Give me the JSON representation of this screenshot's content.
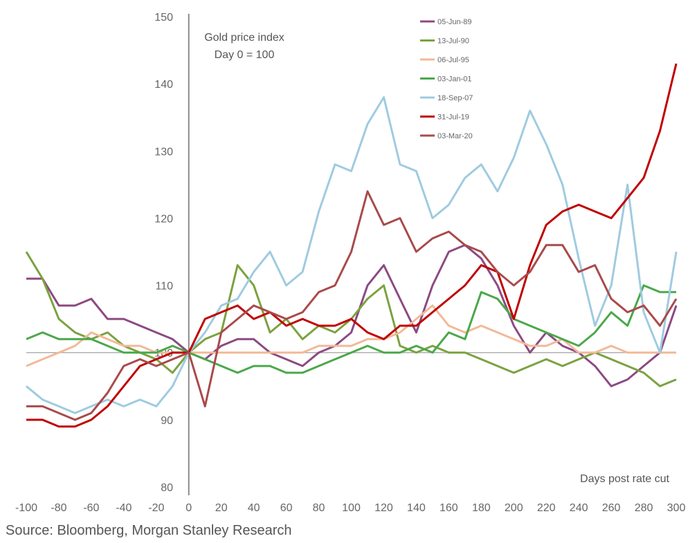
{
  "chart_data": {
    "type": "line",
    "title": "Gold price index",
    "subtitle": "Day 0 = 100",
    "xlabel": "Days post rate cut",
    "ylabel": "",
    "xlim": [
      -100,
      300
    ],
    "ylim": [
      80,
      150
    ],
    "xticks": [
      "-100",
      "-80",
      "-60",
      "-40",
      "-20",
      "0",
      "20",
      "40",
      "60",
      "80",
      "100",
      "120",
      "140",
      "160",
      "180",
      "200",
      "220",
      "240",
      "260",
      "280",
      "300"
    ],
    "yticks": [
      "80",
      "90",
      "100",
      "110",
      "120",
      "130",
      "140",
      "150"
    ],
    "legend_position": "top-center",
    "series": [
      {
        "name": "05-Jun-89",
        "color": "#8c4a82",
        "x": [
          -100,
          -90,
          -80,
          -70,
          -60,
          -50,
          -40,
          -30,
          -20,
          -10,
          0,
          10,
          20,
          30,
          40,
          50,
          60,
          70,
          80,
          90,
          100,
          110,
          120,
          130,
          140,
          150,
          160,
          170,
          180,
          190,
          200,
          210,
          220,
          230,
          240,
          250,
          260,
          270,
          280,
          290,
          300
        ],
        "y": [
          111,
          111,
          107,
          107,
          108,
          105,
          105,
          104,
          103,
          102,
          100,
          99,
          101,
          102,
          102,
          100,
          99,
          98,
          100,
          101,
          103,
          110,
          113,
          108,
          103,
          110,
          115,
          116,
          114,
          110,
          104,
          100,
          103,
          101,
          100,
          98,
          95,
          96,
          98,
          100,
          107
        ]
      },
      {
        "name": "13-Jul-90",
        "color": "#7ba23f",
        "x": [
          -100,
          -90,
          -80,
          -70,
          -60,
          -50,
          -40,
          -30,
          -20,
          -10,
          0,
          10,
          20,
          30,
          40,
          50,
          60,
          70,
          80,
          90,
          100,
          110,
          120,
          130,
          140,
          150,
          160,
          170,
          180,
          190,
          200,
          210,
          220,
          230,
          240,
          250,
          260,
          270,
          280,
          290,
          300
        ],
        "y": [
          115,
          111,
          105,
          103,
          102,
          103,
          101,
          100,
          99,
          97,
          100,
          102,
          103,
          113,
          110,
          103,
          105,
          102,
          104,
          103,
          105,
          108,
          110,
          101,
          100,
          101,
          100,
          100,
          99,
          98,
          97,
          98,
          99,
          98,
          99,
          100,
          99,
          98,
          97,
          95,
          96
        ]
      },
      {
        "name": "06-Jul-95",
        "color": "#f2b998",
        "x": [
          -100,
          -90,
          -80,
          -70,
          -60,
          -50,
          -40,
          -30,
          -20,
          -10,
          0,
          10,
          20,
          30,
          40,
          50,
          60,
          70,
          80,
          90,
          100,
          110,
          120,
          130,
          140,
          150,
          160,
          170,
          180,
          190,
          200,
          210,
          220,
          230,
          240,
          250,
          260,
          270,
          280,
          290,
          300
        ],
        "y": [
          98,
          99,
          100,
          101,
          103,
          102,
          101,
          101,
          100,
          100,
          100,
          100,
          100,
          100,
          100,
          100,
          100,
          100,
          101,
          101,
          101,
          102,
          102,
          103,
          105,
          107,
          104,
          103,
          104,
          103,
          102,
          101,
          101,
          102,
          100,
          100,
          101,
          100,
          100,
          100,
          100
        ]
      },
      {
        "name": "03-Jan-01",
        "color": "#4aa84a",
        "x": [
          -100,
          -90,
          -80,
          -70,
          -60,
          -50,
          -40,
          -30,
          -20,
          -10,
          0,
          10,
          20,
          30,
          40,
          50,
          60,
          70,
          80,
          90,
          100,
          110,
          120,
          130,
          140,
          150,
          160,
          170,
          180,
          190,
          200,
          210,
          220,
          230,
          240,
          250,
          260,
          270,
          280,
          290,
          300
        ],
        "y": [
          102,
          103,
          102,
          102,
          102,
          101,
          100,
          100,
          100,
          101,
          100,
          99,
          98,
          97,
          98,
          98,
          97,
          97,
          98,
          99,
          100,
          101,
          100,
          100,
          101,
          100,
          103,
          102,
          109,
          108,
          105,
          104,
          103,
          102,
          101,
          103,
          106,
          104,
          110,
          109,
          109
        ]
      },
      {
        "name": "18-Sep-07",
        "color": "#9fcbe0",
        "x": [
          -100,
          -90,
          -80,
          -70,
          -60,
          -50,
          -40,
          -30,
          -20,
          -10,
          0,
          10,
          20,
          30,
          40,
          50,
          60,
          70,
          80,
          90,
          100,
          110,
          120,
          130,
          140,
          150,
          160,
          170,
          180,
          190,
          200,
          210,
          220,
          230,
          240,
          250,
          260,
          270,
          280,
          290,
          300
        ],
        "y": [
          95,
          93,
          92,
          91,
          92,
          93,
          92,
          93,
          92,
          95,
          100,
          103,
          107,
          108,
          112,
          115,
          110,
          112,
          121,
          128,
          127,
          134,
          138,
          128,
          127,
          120,
          122,
          126,
          128,
          124,
          129,
          136,
          131,
          125,
          114,
          104,
          110,
          125,
          106,
          100,
          115
        ]
      },
      {
        "name": "31-Jul-19",
        "color": "#c00000",
        "x": [
          -100,
          -90,
          -80,
          -70,
          -60,
          -50,
          -40,
          -30,
          -20,
          -10,
          0,
          10,
          20,
          30,
          40,
          50,
          60,
          70,
          80,
          90,
          100,
          110,
          120,
          130,
          140,
          150,
          160,
          170,
          180,
          190,
          200,
          210,
          220,
          230,
          240,
          250,
          260,
          270,
          280,
          290,
          300
        ],
        "y": [
          90,
          90,
          89,
          89,
          90,
          92,
          95,
          98,
          99,
          100,
          100,
          105,
          106,
          107,
          105,
          106,
          104,
          105,
          104,
          104,
          105,
          103,
          102,
          104,
          104,
          106,
          108,
          110,
          113,
          112,
          105,
          113,
          119,
          121,
          122,
          121,
          120,
          123,
          126,
          133,
          143
        ]
      },
      {
        "name": "03-Mar-20",
        "color": "#a94a4a",
        "x": [
          -100,
          -90,
          -80,
          -70,
          -60,
          -50,
          -40,
          -30,
          -20,
          -10,
          0,
          10,
          20,
          30,
          40,
          50,
          60,
          70,
          80,
          90,
          100,
          110,
          120,
          130,
          140,
          150,
          160,
          170,
          180,
          190,
          200,
          210,
          220,
          230,
          240,
          250,
          260,
          270,
          280,
          290,
          300
        ],
        "y": [
          92,
          92,
          91,
          90,
          91,
          94,
          98,
          99,
          98,
          99,
          100,
          92,
          103,
          105,
          107,
          106,
          105,
          106,
          109,
          110,
          115,
          124,
          119,
          120,
          115,
          117,
          118,
          116,
          115,
          112,
          110,
          112,
          116,
          116,
          112,
          113,
          108,
          106,
          107,
          104,
          108
        ]
      }
    ]
  },
  "footer": {
    "source": "Source: Bloomberg, Morgan Stanley Research"
  }
}
